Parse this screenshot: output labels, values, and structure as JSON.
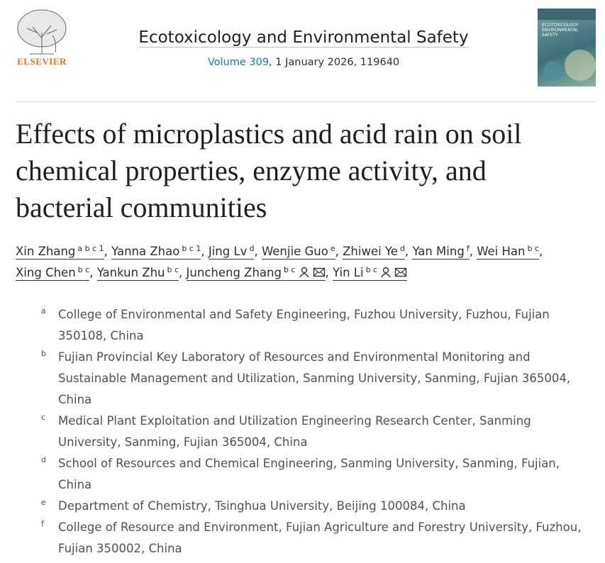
{
  "header": {
    "publisher": "ELSEVIER",
    "journal": "Ecotoxicology and Environmental Safety",
    "volume": "Volume 309",
    "issue_info": ", 1 January 2026, 119640",
    "cover_title": "ECOTOXICOLOGY ENVIRONMENTAL SAFETY"
  },
  "article": {
    "title": "Effects of microplastics and acid rain on soil chemical properties, enzyme activity, and bacterial communities",
    "separator": ",",
    "authors": [
      {
        "name": "Xin Zhang",
        "sup": "a b c 1"
      },
      {
        "name": "Yanna Zhao",
        "sup": "b c 1"
      },
      {
        "name": "Jing Lv",
        "sup": "d"
      },
      {
        "name": "Wenjie Guo",
        "sup": "e"
      },
      {
        "name": "Zhiwei Ye",
        "sup": "d"
      },
      {
        "name": "Yan Ming",
        "sup": "f"
      },
      {
        "name": "Wei Han",
        "sup": "b c"
      },
      {
        "name": "Xing Chen",
        "sup": "b c"
      },
      {
        "name": "Yankun Zhu",
        "sup": "b c"
      },
      {
        "name": "Juncheng Zhang",
        "sup": "b c",
        "corresponding": true
      },
      {
        "name": "Yin Li",
        "sup": "b c",
        "corresponding": true
      }
    ],
    "affiliations": [
      {
        "label": "a",
        "text": "College of Environmental and Safety Engineering, Fuzhou University, Fuzhou, Fujian 350108, China"
      },
      {
        "label": "b",
        "text": "Fujian Provincial Key Laboratory of Resources and Environmental Monitoring and Sustainable Management and Utilization, Sanming University, Sanming, Fujian 365004, China"
      },
      {
        "label": "c",
        "text": "Medical Plant Exploitation and Utilization Engineering Research Center, Sanming University, Sanming, Fujian 365004, China"
      },
      {
        "label": "d",
        "text": "School of Resources and Chemical Engineering, Sanming University, Sanming, Fujian, China"
      },
      {
        "label": "e",
        "text": "Department of Chemistry, Tsinghua University, Beijing 100084, China"
      },
      {
        "label": "f",
        "text": "College of Resource and Environment, Fujian Agriculture and Forestry University, Fuzhou, Fujian 350002, China"
      }
    ]
  }
}
